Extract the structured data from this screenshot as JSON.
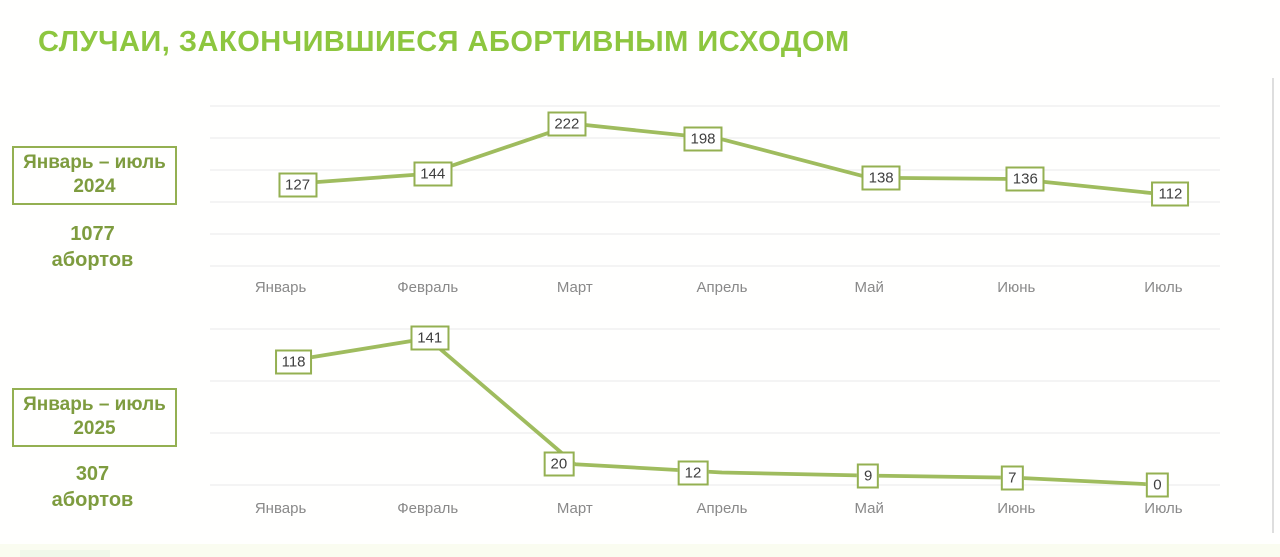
{
  "page": {
    "title": "СЛУЧАИ, ЗАКОНЧИВШИЕСЯ АБОРТИВНЫМ ИСХОДОМ"
  },
  "colors": {
    "title_green": "#8dc63f",
    "line_green": "#9fbc5e",
    "box_border_green": "#94b052",
    "side_text_green": "#7e9c3f",
    "grid_gray": "#e9e9e9",
    "month_gray": "#898989",
    "value_dark": "#3f3f3f"
  },
  "sections": [
    {
      "period": "Январь – июль",
      "year": "2024",
      "total_value": "1077",
      "total_unit": "абортов"
    },
    {
      "period": "Январь – июль",
      "year": "2025",
      "total_value": "307",
      "total_unit": "абортов"
    }
  ],
  "chart_data": [
    {
      "type": "line",
      "title": "Январь – июль 2024",
      "categories": [
        "Январь",
        "Февраль",
        "Март",
        "Апрель",
        "Май",
        "Июнь",
        "Июль"
      ],
      "values": [
        127,
        144,
        222,
        198,
        138,
        136,
        112
      ],
      "xlabel": "",
      "ylabel": "",
      "ylim": [
        0,
        250
      ],
      "gridline_step": 50,
      "grid": true,
      "legend_position": "none",
      "data_labels": "boxed"
    },
    {
      "type": "line",
      "title": "Январь – июль 2025",
      "categories": [
        "Январь",
        "Февраль",
        "Март",
        "Апрель",
        "Май",
        "Июнь",
        "Июль"
      ],
      "values": [
        118,
        141,
        20,
        12,
        9,
        7,
        0
      ],
      "xlabel": "",
      "ylabel": "",
      "ylim": [
        0,
        150
      ],
      "gridline_step": 50,
      "grid": true,
      "legend_position": "none",
      "data_labels": "boxed"
    }
  ]
}
